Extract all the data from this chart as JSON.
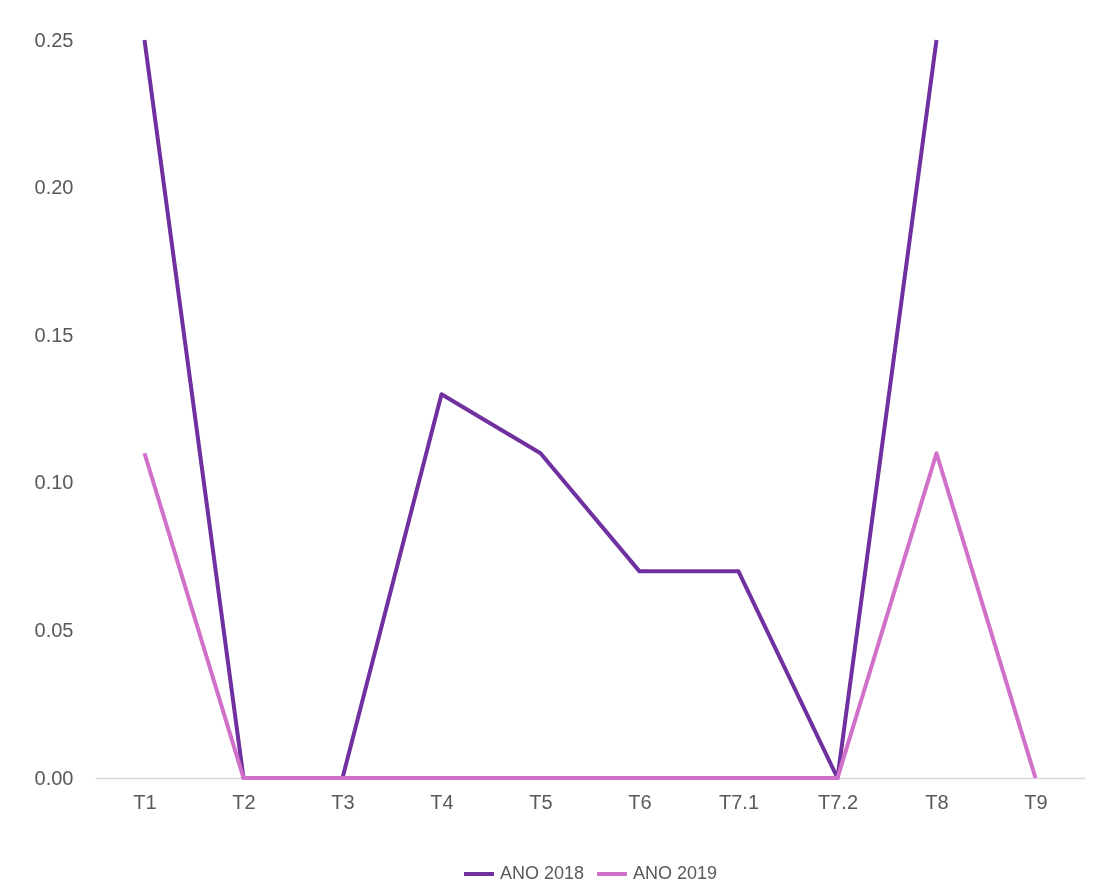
{
  "chart_data": {
    "type": "line",
    "categories": [
      "T1",
      "T2",
      "T3",
      "T4",
      "T5",
      "T6",
      "T7.1",
      "T7.2",
      "T8",
      "T9"
    ],
    "series": [
      {
        "name": "ANO 2018",
        "color": "#7030a0",
        "values": [
          0.25,
          0,
          0,
          0.13,
          0.11,
          0.07,
          0.07,
          0,
          0.25,
          null
        ]
      },
      {
        "name": "ANO 2019",
        "color": "#d070c8",
        "values": [
          0.11,
          0,
          0,
          0,
          0,
          0,
          0,
          0,
          0.11,
          0
        ]
      }
    ],
    "ylim": [
      0,
      0.25
    ],
    "yticks": [
      {
        "value": 0,
        "label": "0.00"
      },
      {
        "value": 0.05,
        "label": "0.05"
      },
      {
        "value": 0.1,
        "label": "0.10"
      },
      {
        "value": 0.15,
        "label": "0.15"
      },
      {
        "value": 0.2,
        "label": "0.20"
      },
      {
        "value": 0.25,
        "label": "0.25"
      }
    ],
    "grid": false,
    "legend": "bottom",
    "marker": "none",
    "line_style": "solid"
  }
}
